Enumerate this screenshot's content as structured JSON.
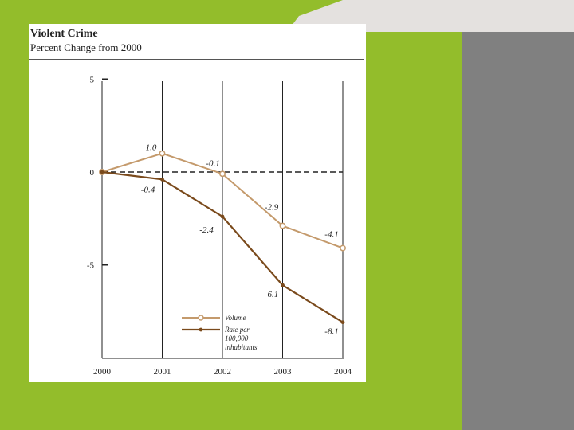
{
  "colors": {
    "background": "#93bd2b",
    "panel": "#808080",
    "volume": "#c49a6c",
    "rate": "#7a4a1c"
  },
  "chart_data": {
    "type": "line",
    "title": "Violent Crime",
    "subtitle": "Percent Change from 2000",
    "xlabel": "",
    "ylabel": "",
    "x": [
      "2000",
      "2001",
      "2002",
      "2003",
      "2004"
    ],
    "yticks": [
      5,
      0,
      -5
    ],
    "ylim": [
      -10.5,
      5
    ],
    "grid": "vertical",
    "reference_line": 0,
    "legend": "bottom-left",
    "series": [
      {
        "name": "Volume",
        "values": [
          0,
          1.0,
          -0.1,
          -2.9,
          -4.1
        ],
        "labels": [
          "",
          "1.0",
          "-0.1",
          "-2.9",
          "-4.1"
        ]
      },
      {
        "name": "Rate per 100,000 inhabitants",
        "legend_lines": [
          "Rate per",
          "100,000",
          "inhabitants"
        ],
        "values": [
          0,
          -0.4,
          -2.4,
          -6.1,
          -8.1
        ],
        "labels": [
          "",
          "-0.4",
          "-2.4",
          "-6.1",
          "-8.1"
        ]
      }
    ]
  }
}
